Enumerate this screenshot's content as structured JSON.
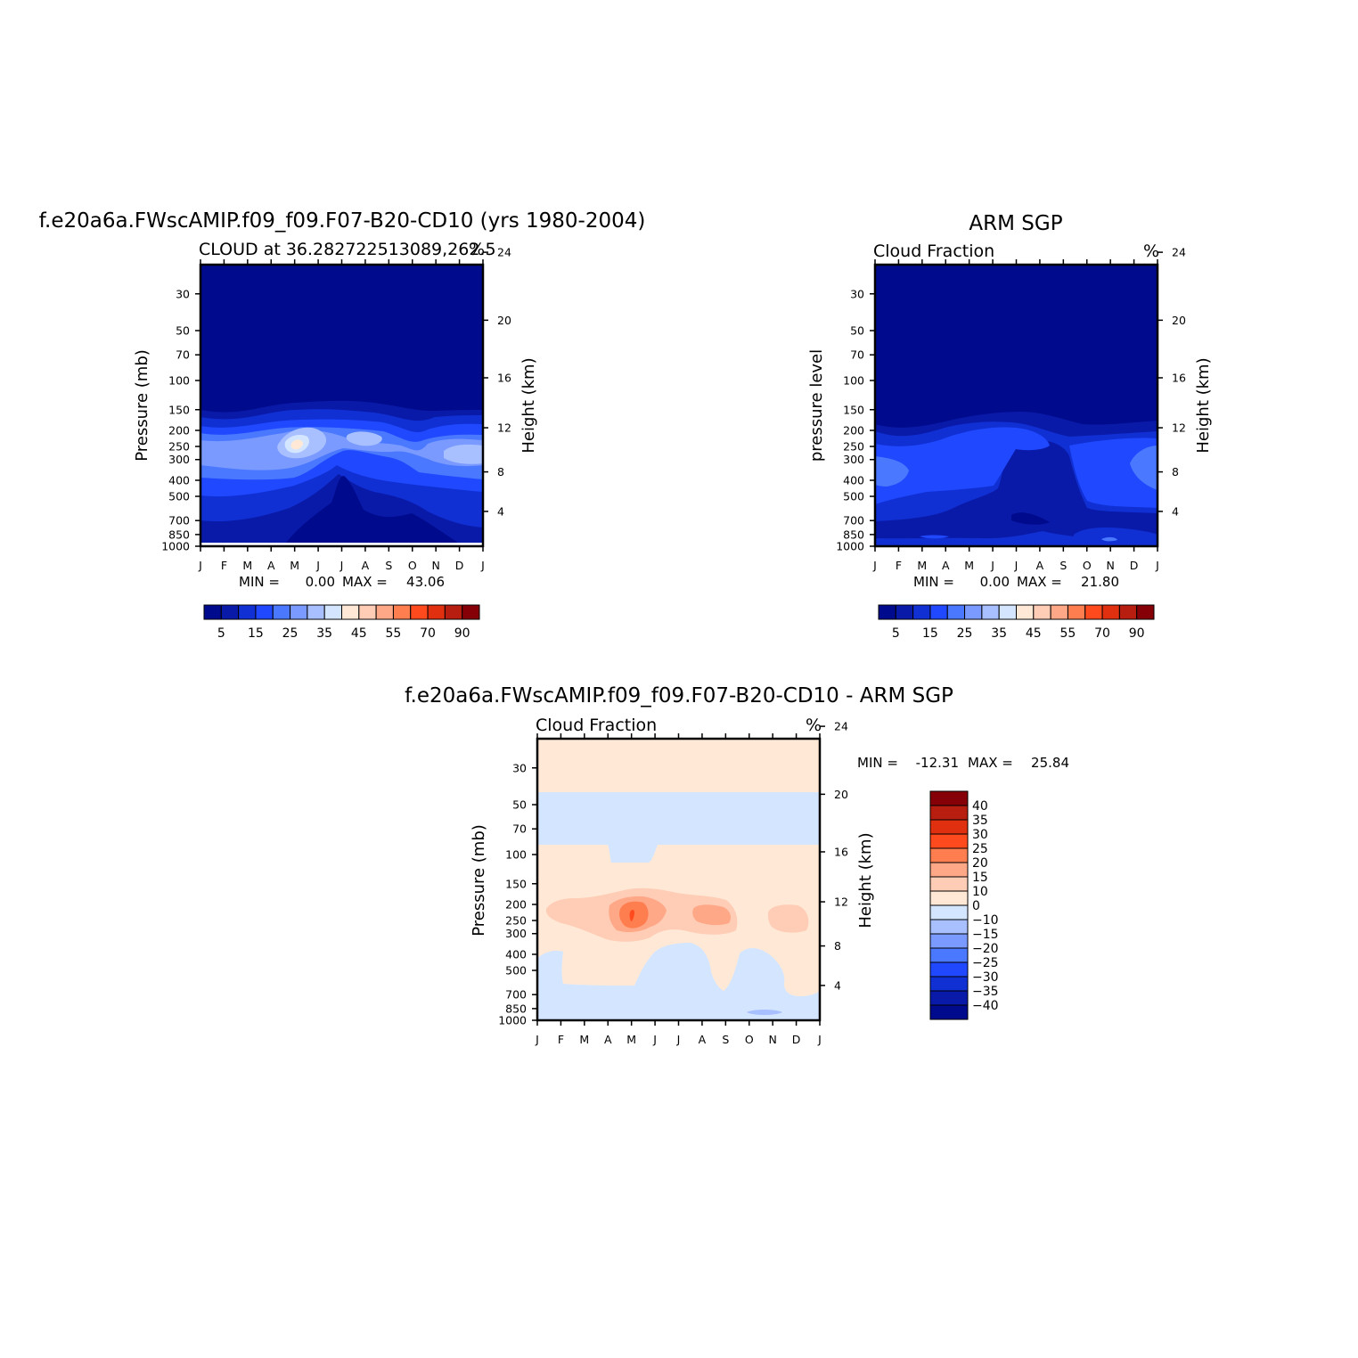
{
  "panels": [
    {
      "title": "f.e20a6a.FWscAMIP.f09_f09.F07-B20-CD10 (yrs 1980-2004)",
      "subtitle_left": "CLOUD at 36.282722513089,262.5",
      "subtitle_right": "%",
      "ylabel": "Pressure (mb)",
      "ylabel_right": "Height (km)",
      "min_label": "MIN =",
      "min_value": "0.00",
      "max_label": "MAX =",
      "max_value": "43.06"
    },
    {
      "title": "ARM SGP",
      "subtitle_left": "Cloud Fraction",
      "subtitle_right": "%",
      "ylabel": "pressure level",
      "ylabel_right": "Height (km)",
      "min_label": "MIN =",
      "min_value": "0.00",
      "max_label": "MAX =",
      "max_value": "21.80"
    },
    {
      "title": "f.e20a6a.FWscAMIP.f09_f09.F07-B20-CD10 - ARM SGP",
      "subtitle_left": "Cloud Fraction",
      "subtitle_right": "%",
      "ylabel": "Pressure (mb)",
      "ylabel_right": "Height (km)",
      "min_label": "MIN =",
      "min_value": "-12.31",
      "max_label": "MAX =",
      "max_value": "25.84"
    }
  ],
  "chart_data": [
    {
      "type": "heatmap",
      "title": "f.e20a6a.FWscAMIP.f09_f09.F07-B20-CD10 (yrs 1980-2004)",
      "subtitle": "CLOUD at 36.282722513089,262.5",
      "units": "%",
      "x_ticks": [
        "J",
        "F",
        "M",
        "A",
        "M",
        "J",
        "J",
        "A",
        "S",
        "O",
        "N",
        "D",
        "J"
      ],
      "y_ticks": [
        30,
        50,
        70,
        100,
        150,
        200,
        250,
        300,
        400,
        500,
        700,
        850,
        1000
      ],
      "y_range": [
        20,
        1000
      ],
      "y_scale": "log",
      "y2_ticks": [
        4,
        8,
        12,
        16,
        20,
        24
      ],
      "ylabel": "Pressure (mb)",
      "y2label": "Height (km)",
      "min": 0.0,
      "max": 43.06,
      "contour_levels": [
        5,
        10,
        15,
        20,
        25,
        30,
        35,
        40,
        45,
        50,
        55,
        60,
        70,
        80,
        90
      ],
      "colorbar_labels": [
        5,
        15,
        25,
        35,
        45,
        55,
        70,
        90
      ],
      "colors": [
        "#000a8c",
        "#0a1aa8",
        "#1030d4",
        "#2048ff",
        "#4a78ff",
        "#7a9aff",
        "#a8c0ff",
        "#d4e6ff",
        "#ffe9d6",
        "#ffccb6",
        "#ffa888",
        "#ff7e50",
        "#ff4a1e",
        "#e03010",
        "#b81e10",
        "#860008"
      ]
    },
    {
      "type": "heatmap",
      "title": "ARM SGP",
      "subtitle": "Cloud Fraction",
      "units": "%",
      "x_ticks": [
        "J",
        "F",
        "M",
        "A",
        "M",
        "J",
        "J",
        "A",
        "S",
        "O",
        "N",
        "D",
        "J"
      ],
      "y_ticks": [
        30,
        50,
        70,
        100,
        150,
        200,
        250,
        300,
        400,
        500,
        700,
        850,
        1000
      ],
      "y_range": [
        20,
        1000
      ],
      "y_scale": "log",
      "y2_ticks": [
        4,
        8,
        12,
        16,
        20,
        24
      ],
      "ylabel": "pressure level",
      "y2label": "Height (km)",
      "min": 0.0,
      "max": 21.8,
      "contour_levels": [
        5,
        10,
        15,
        20,
        25,
        30,
        35,
        40,
        45,
        50,
        55,
        60,
        70,
        80,
        90
      ],
      "colorbar_labels": [
        5,
        15,
        25,
        35,
        45,
        55,
        70,
        90
      ],
      "colors": [
        "#000a8c",
        "#0a1aa8",
        "#1030d4",
        "#2048ff",
        "#4a78ff",
        "#7a9aff",
        "#a8c0ff",
        "#d4e6ff",
        "#ffe9d6",
        "#ffccb6",
        "#ffa888",
        "#ff7e50",
        "#ff4a1e",
        "#e03010",
        "#b81e10",
        "#860008"
      ]
    },
    {
      "type": "heatmap",
      "title": "f.e20a6a.FWscAMIP.f09_f09.F07-B20-CD10 - ARM SGP",
      "subtitle": "Cloud Fraction",
      "units": "%",
      "x_ticks": [
        "J",
        "F",
        "M",
        "A",
        "M",
        "J",
        "J",
        "A",
        "S",
        "O",
        "N",
        "D",
        "J"
      ],
      "y_ticks": [
        30,
        50,
        70,
        100,
        150,
        200,
        250,
        300,
        400,
        500,
        700,
        850,
        1000
      ],
      "y_range": [
        20,
        1000
      ],
      "y_scale": "log",
      "y2_ticks": [
        4,
        8,
        12,
        16,
        20,
        24
      ],
      "ylabel": "Pressure (mb)",
      "y2label": "Height (km)",
      "min": -12.31,
      "max": 25.84,
      "contour_levels": [
        -40,
        -35,
        -30,
        -25,
        -20,
        -15,
        -10,
        0,
        10,
        15,
        20,
        25,
        30,
        35,
        40
      ],
      "colorbar_labels": [
        40,
        35,
        30,
        25,
        20,
        15,
        10,
        0,
        -10,
        -15,
        -20,
        -25,
        -30,
        -35,
        -40
      ],
      "colors": [
        "#860008",
        "#b81e10",
        "#e03010",
        "#ff4a1e",
        "#ff7e50",
        "#ffa888",
        "#ffccb6",
        "#ffe9d6",
        "#d4e6ff",
        "#a8c0ff",
        "#7a9aff",
        "#4a78ff",
        "#2048ff",
        "#1030d4",
        "#0a1aa8",
        "#000a8c"
      ]
    }
  ]
}
